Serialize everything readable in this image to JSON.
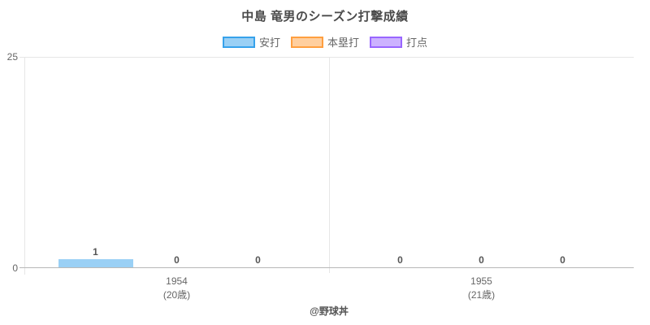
{
  "title": "中島 竜男のシーズン打撃成績",
  "footer": "@野球丼",
  "colors": {
    "title_text": "#4a4a4a",
    "axis_text": "#666666",
    "value_label_text": "#555555",
    "grid_line": "#e6e6e6",
    "zero_line": "#b8b8b8"
  },
  "legend": {
    "position": "top",
    "items": [
      {
        "label": "安打",
        "fill": "#9ad0f5",
        "border": "#36a2eb"
      },
      {
        "label": "本塁打",
        "fill": "#ffcf9f",
        "border": "#ff9f40"
      },
      {
        "label": "打点",
        "fill": "#ccb2ff",
        "border": "#9966ff"
      }
    ]
  },
  "chart_data": {
    "type": "bar",
    "title": "中島 竜男のシーズン打撃成績",
    "categories": [
      {
        "year": "1954",
        "age": "(20歳)"
      },
      {
        "year": "1955",
        "age": "(21歳)"
      }
    ],
    "series": [
      {
        "name": "安打",
        "fill": "#9ad0f5",
        "border": "#36a2eb",
        "values": [
          1,
          0
        ]
      },
      {
        "name": "本塁打",
        "fill": "#ffcf9f",
        "border": "#ff9f40",
        "values": [
          0,
          0
        ]
      },
      {
        "name": "打点",
        "fill": "#ccb2ff",
        "border": "#9966ff",
        "values": [
          0,
          0
        ]
      }
    ],
    "xlabel": "",
    "ylabel": "",
    "ylim": [
      0,
      25
    ],
    "yticks": [
      0,
      25
    ],
    "legend_position": "top",
    "grid": true,
    "value_labels": true
  }
}
